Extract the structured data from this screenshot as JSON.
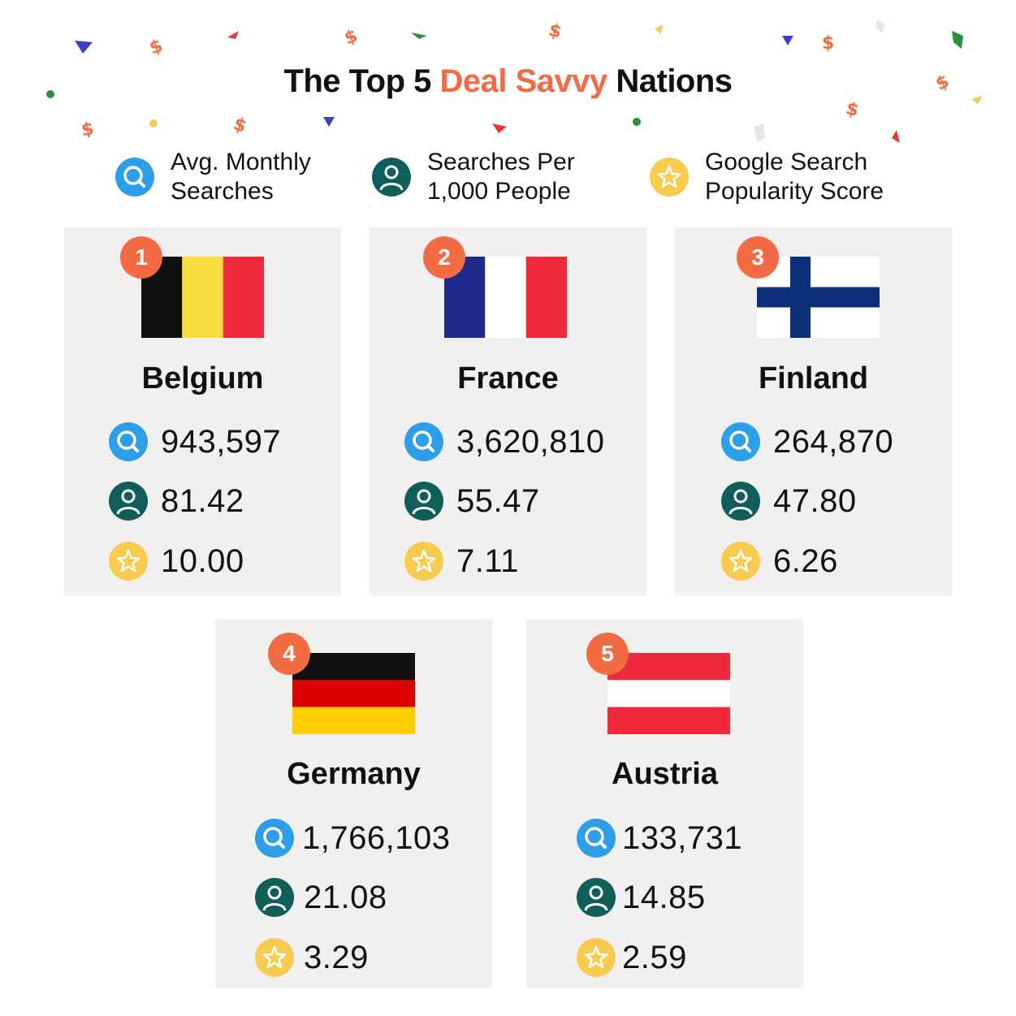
{
  "title": {
    "prefix": "The Top 5 ",
    "highlight": "Deal Savvy",
    "suffix": " Nations"
  },
  "colors": {
    "accent": "#f26b43",
    "search": "#2f9ee8",
    "person": "#0f5e5a",
    "star": "#f6cb4f",
    "card": "#f2f0ef"
  },
  "legend": [
    {
      "icon": "search-icon",
      "line1": "Avg. Monthly",
      "line2": "Searches"
    },
    {
      "icon": "person-icon",
      "line1": "Searches Per",
      "line2": "1,000 People"
    },
    {
      "icon": "star-icon",
      "line1": "Google Search",
      "line2": "Popularity Score"
    }
  ],
  "countries": [
    {
      "rank": "1",
      "name": "Belgium",
      "flag": "belgium-flag",
      "searches": "943,597",
      "per_1000": "81.42",
      "score": "10.00"
    },
    {
      "rank": "2",
      "name": "France",
      "flag": "france-flag",
      "searches": "3,620,810",
      "per_1000": "55.47",
      "score": "7.11"
    },
    {
      "rank": "3",
      "name": "Finland",
      "flag": "finland-flag",
      "searches": "264,870",
      "per_1000": "47.80",
      "score": "6.26"
    },
    {
      "rank": "4",
      "name": "Germany",
      "flag": "germany-flag",
      "searches": "1,766,103",
      "per_1000": "21.08",
      "score": "3.29"
    },
    {
      "rank": "5",
      "name": "Austria",
      "flag": "austria-flag",
      "searches": "133,731",
      "per_1000": "14.85",
      "score": "2.59"
    }
  ]
}
